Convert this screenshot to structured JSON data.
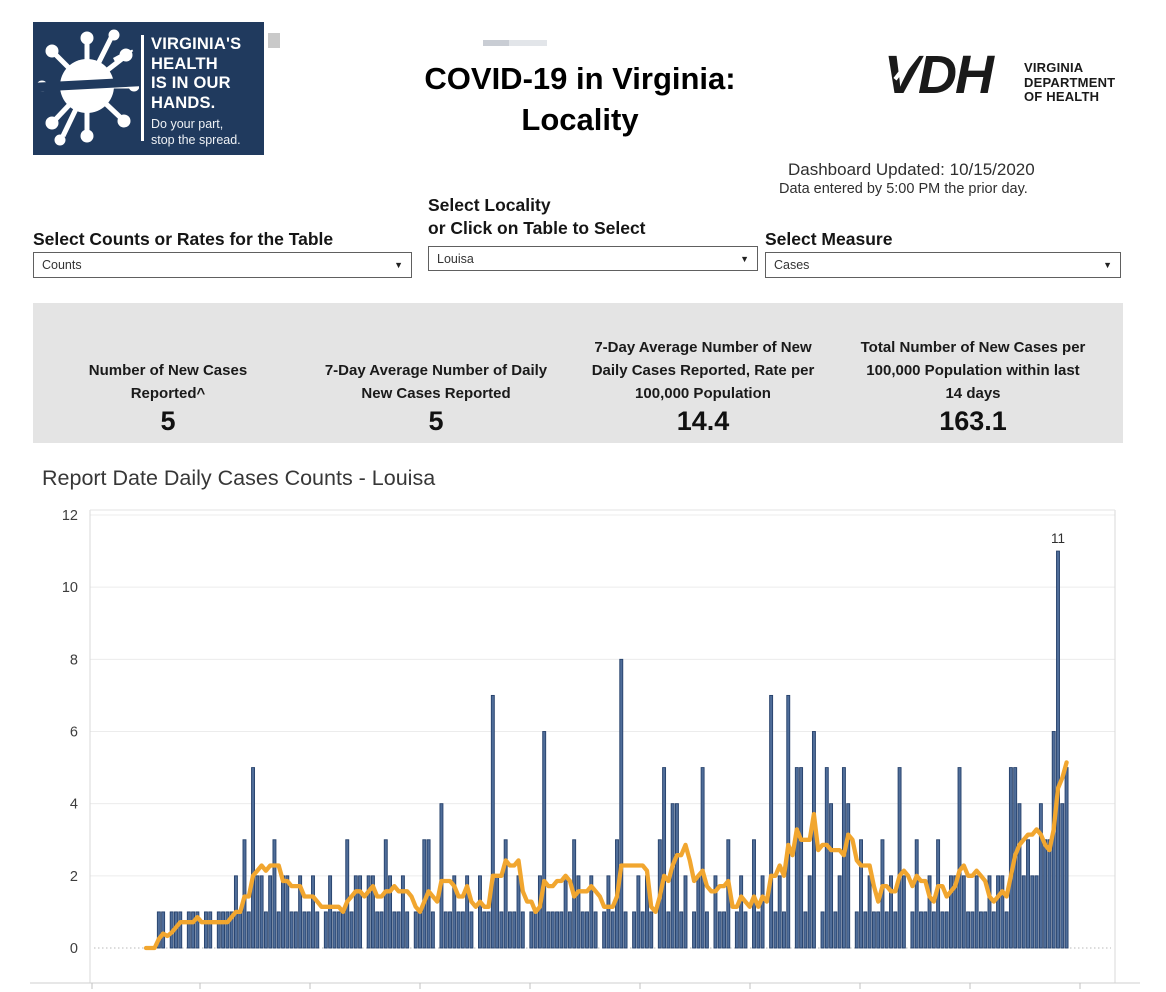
{
  "logo": {
    "title_lines": [
      "VIRGINIA'S",
      "HEALTH",
      "IS IN OUR",
      "HANDS."
    ],
    "tagline_lines": [
      "Do your part,",
      "stop the spread."
    ],
    "bg_color": "#203a5e"
  },
  "header": {
    "title_line1": "COVID-19 in Virginia:",
    "title_line2": "Locality",
    "vdh_acronym": "VDH",
    "vdh_dept_lines": [
      "VIRGINIA",
      "DEPARTMENT",
      "OF HEALTH"
    ],
    "updated": "Dashboard Updated: 10/15/2020",
    "updated_note": "Data entered by 5:00 PM the prior day."
  },
  "controls": [
    {
      "label": "Select Counts or Rates for the Table",
      "value": "Counts"
    },
    {
      "label_line1": "Select Locality",
      "label_line2": "or Click on Table to Select",
      "value": "Louisa"
    },
    {
      "label": "Select Measure",
      "value": "Cases"
    }
  ],
  "stats": [
    {
      "label": "Number of New Cases Reported^",
      "value": "5"
    },
    {
      "label": "7-Day Average Number of Daily New Cases Reported",
      "value": "5"
    },
    {
      "label": "7-Day Average Number of New Daily Cases Reported, Rate per 100,000 Population",
      "value": "14.4"
    },
    {
      "label": "Total Number of New Cases per 100,000 Population within last 14 days",
      "value": "163.1"
    }
  ],
  "chart_data": {
    "type": "bar",
    "title": "Report Date Daily Cases Counts - Louisa",
    "ylabel": "",
    "xlabel": "",
    "ylim": [
      0,
      12
    ],
    "yticks": [
      0,
      2,
      4,
      6,
      8,
      10,
      12
    ],
    "grid": true,
    "annotation_label": "11",
    "colors": {
      "bar": "#4f6d99",
      "bar_edge": "#26416b",
      "line": "#f1a62f"
    },
    "series": [
      {
        "name": "Daily Cases Reported",
        "type": "bar",
        "values": [
          0,
          0,
          0,
          1,
          1,
          0,
          1,
          1,
          1,
          0,
          1,
          1,
          1,
          0,
          1,
          1,
          0,
          1,
          1,
          1,
          1,
          2,
          1,
          3,
          1,
          5,
          2,
          2,
          1,
          2,
          3,
          1,
          2,
          2,
          1,
          1,
          2,
          1,
          1,
          2,
          1,
          0,
          1,
          2,
          1,
          1,
          1,
          3,
          1,
          2,
          2,
          0,
          2,
          2,
          1,
          1,
          3,
          2,
          1,
          1,
          2,
          1,
          0,
          1,
          1,
          3,
          3,
          1,
          0,
          4,
          1,
          1,
          2,
          1,
          1,
          2,
          1,
          0,
          2,
          1,
          1,
          7,
          2,
          1,
          3,
          1,
          1,
          2,
          1,
          0,
          1,
          1,
          2,
          6,
          1,
          1,
          1,
          1,
          2,
          1,
          3,
          2,
          1,
          1,
          2,
          1,
          0,
          1,
          2,
          1,
          3,
          8,
          1,
          0,
          1,
          2,
          1,
          2,
          1,
          0,
          3,
          5,
          1,
          4,
          4,
          1,
          2,
          0,
          1,
          2,
          5,
          1,
          0,
          2,
          1,
          1,
          3,
          0,
          1,
          2,
          1,
          0,
          3,
          1,
          2,
          0,
          7,
          1,
          2,
          1,
          7,
          0,
          5,
          5,
          1,
          2,
          6,
          0,
          1,
          5,
          4,
          1,
          2,
          5,
          4,
          0,
          1,
          3,
          1,
          2,
          1,
          1,
          3,
          1,
          2,
          1,
          5,
          2,
          0,
          1,
          3,
          1,
          1,
          2,
          1,
          3,
          1,
          1,
          2,
          2,
          5,
          2,
          1,
          1,
          2,
          1,
          1,
          2,
          1,
          2,
          2,
          1,
          5,
          5,
          4,
          2,
          3,
          2,
          2,
          4,
          3,
          3,
          6,
          11,
          4,
          5
        ]
      },
      {
        "name": "7-Day Average of Daily Cases",
        "type": "line",
        "derivation": "trailing 7-day mean of Daily Cases Reported"
      }
    ]
  }
}
